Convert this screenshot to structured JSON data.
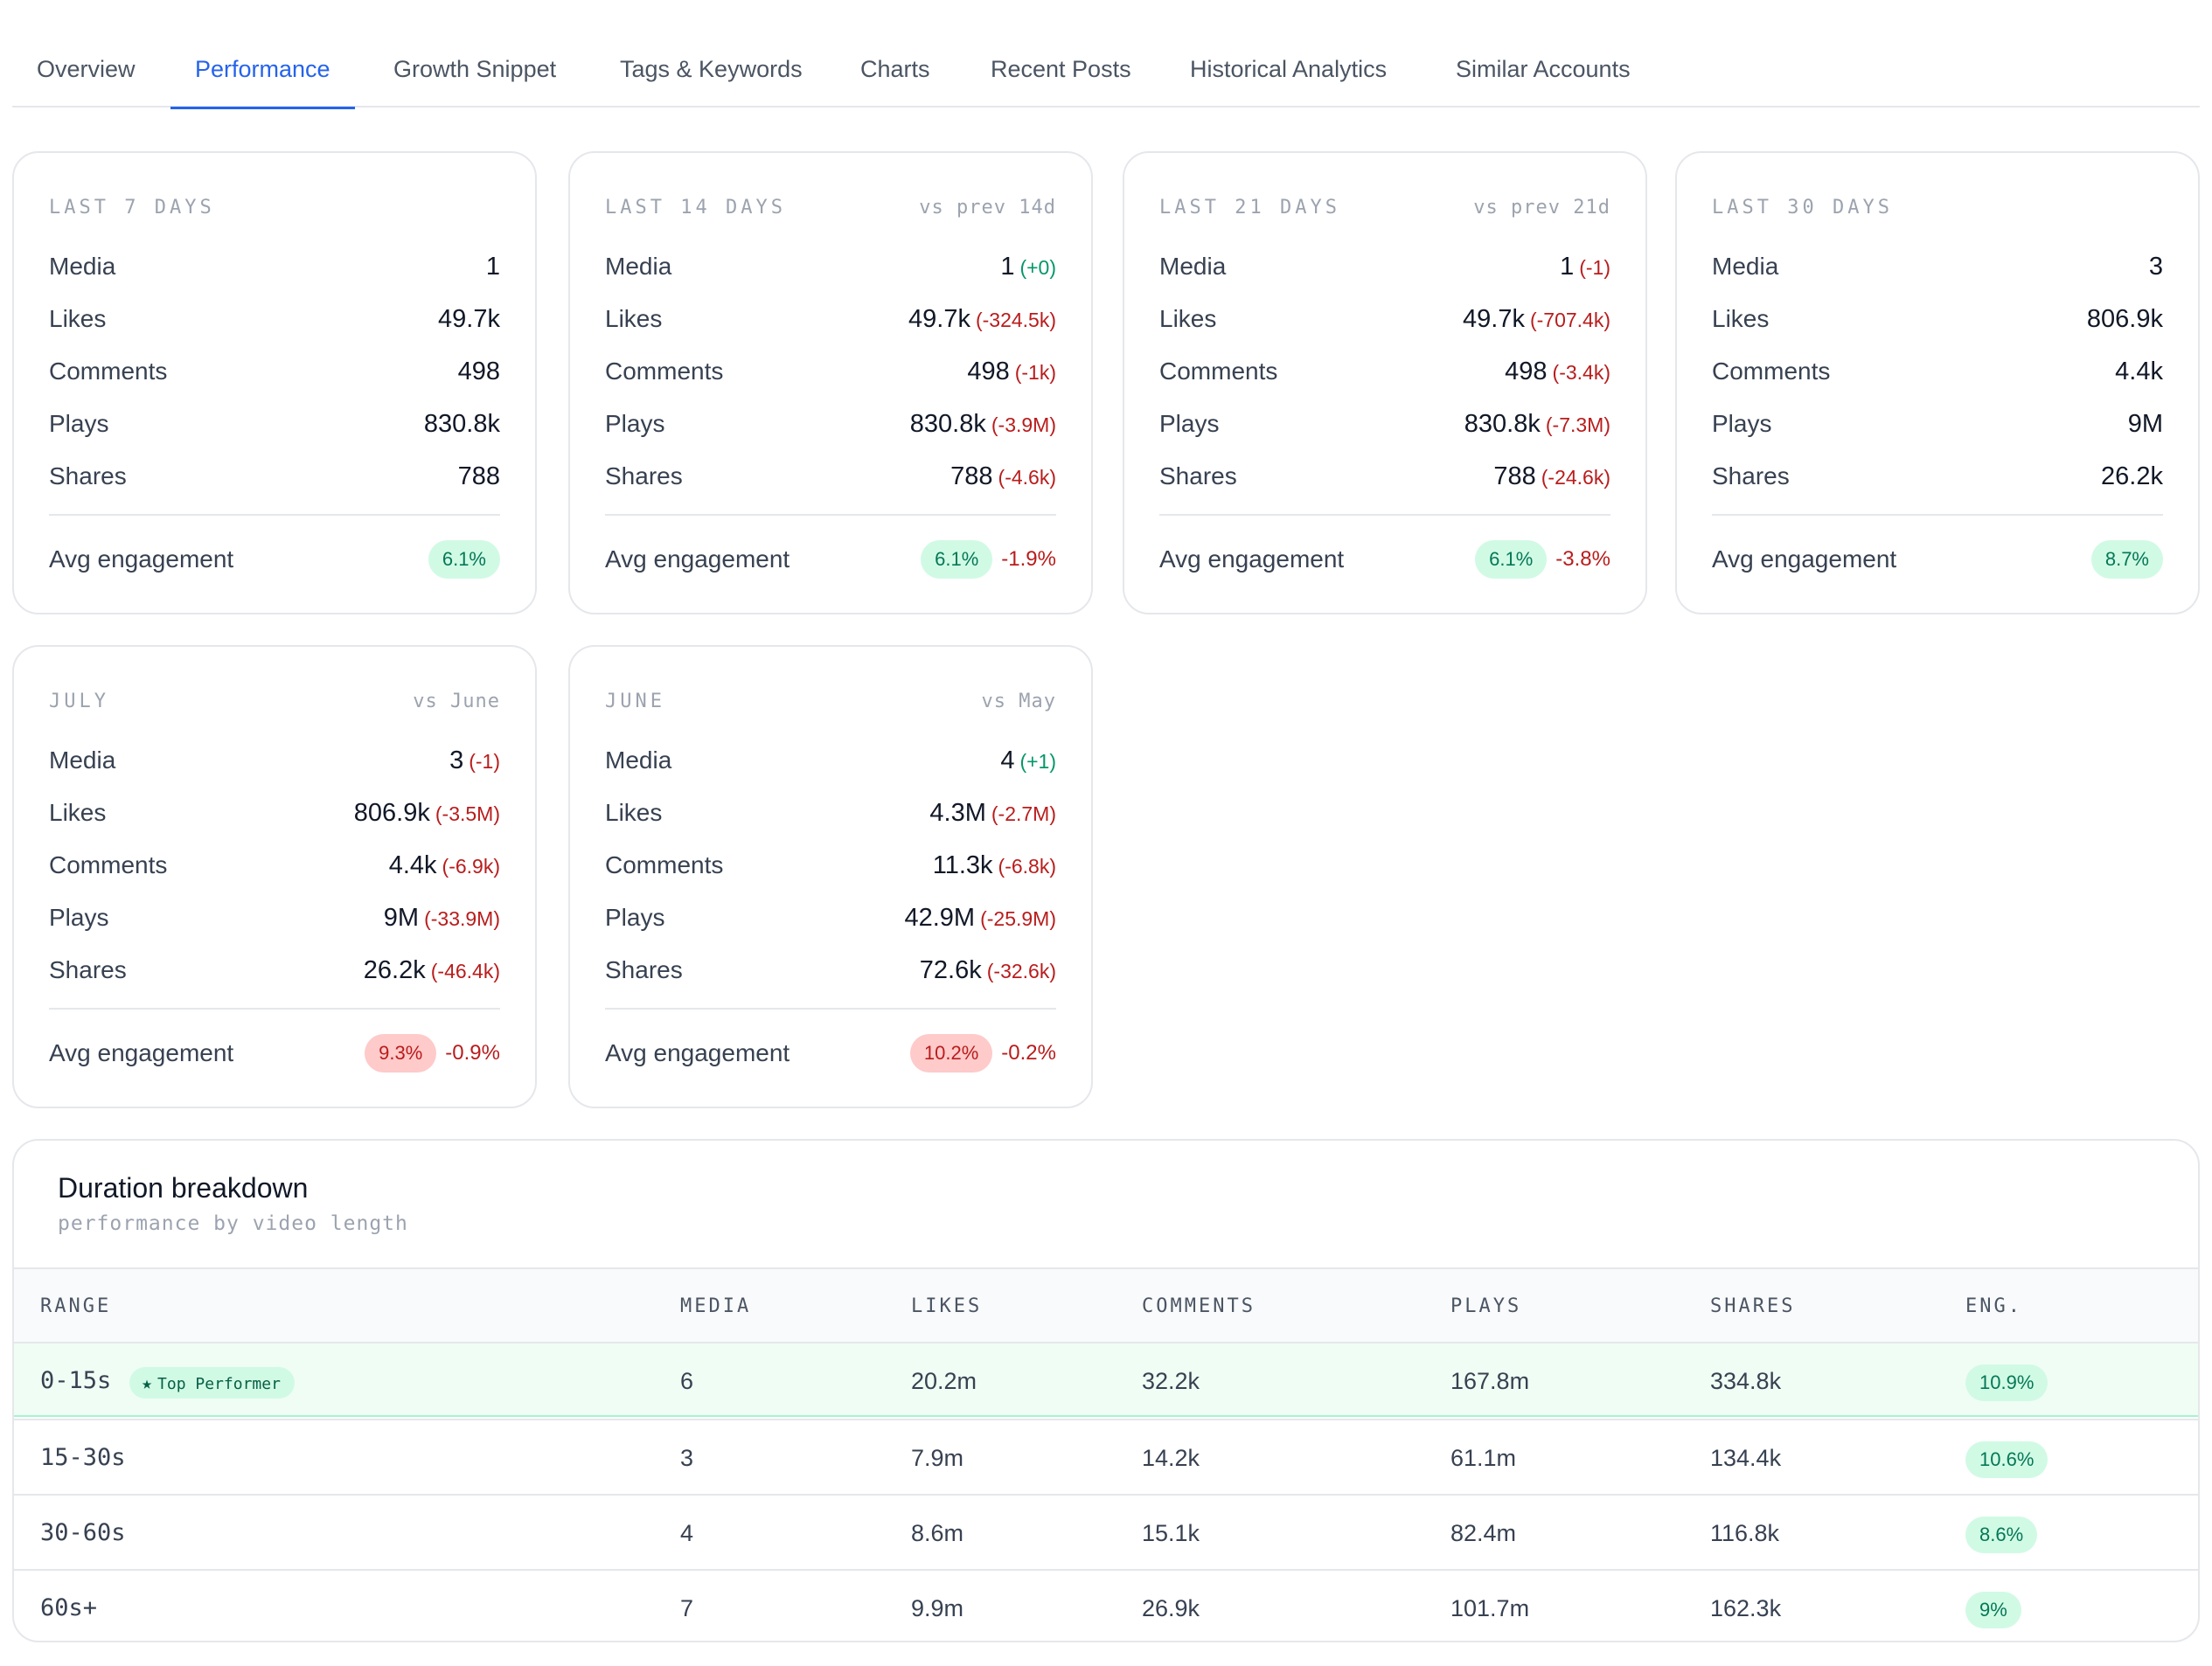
{
  "tabs": [
    {
      "label": "Overview"
    },
    {
      "label": "Performance"
    },
    {
      "label": "Growth Snippet"
    },
    {
      "label": "Tags & Keywords"
    },
    {
      "label": "Charts"
    },
    {
      "label": "Recent Posts"
    },
    {
      "label": "Historical Analytics"
    },
    {
      "label": "Similar Accounts"
    }
  ],
  "active_tab": "Performance",
  "metric_labels": {
    "media": "Media",
    "likes": "Likes",
    "comments": "Comments",
    "plays": "Plays",
    "shares": "Shares",
    "avg_engagement": "Avg engagement"
  },
  "cards": [
    {
      "title": "LAST 7 DAYS",
      "compare": "",
      "media": {
        "value": "1",
        "delta": ""
      },
      "likes": {
        "value": "49.7k",
        "delta": ""
      },
      "comments": {
        "value": "498",
        "delta": ""
      },
      "plays": {
        "value": "830.8k",
        "delta": ""
      },
      "shares": {
        "value": "788",
        "delta": ""
      },
      "engagement": {
        "value": "6.1%",
        "change": ""
      }
    },
    {
      "title": "LAST 14 DAYS",
      "compare": "vs prev 14d",
      "media": {
        "value": "1",
        "delta": "(+0)"
      },
      "likes": {
        "value": "49.7k",
        "delta": "(-324.5k)"
      },
      "comments": {
        "value": "498",
        "delta": "(-1k)"
      },
      "plays": {
        "value": "830.8k",
        "delta": "(-3.9M)"
      },
      "shares": {
        "value": "788",
        "delta": "(-4.6k)"
      },
      "engagement": {
        "value": "6.1%",
        "change": "-1.9%"
      }
    },
    {
      "title": "LAST 21 DAYS",
      "compare": "vs prev 21d",
      "media": {
        "value": "1",
        "delta": "(-1)"
      },
      "likes": {
        "value": "49.7k",
        "delta": "(-707.4k)"
      },
      "comments": {
        "value": "498",
        "delta": "(-3.4k)"
      },
      "plays": {
        "value": "830.8k",
        "delta": "(-7.3M)"
      },
      "shares": {
        "value": "788",
        "delta": "(-24.6k)"
      },
      "engagement": {
        "value": "6.1%",
        "change": "-3.8%"
      }
    },
    {
      "title": "LAST 30 DAYS",
      "compare": "",
      "media": {
        "value": "3",
        "delta": ""
      },
      "likes": {
        "value": "806.9k",
        "delta": ""
      },
      "comments": {
        "value": "4.4k",
        "delta": ""
      },
      "plays": {
        "value": "9M",
        "delta": ""
      },
      "shares": {
        "value": "26.2k",
        "delta": ""
      },
      "engagement": {
        "value": "8.7%",
        "change": ""
      }
    },
    {
      "title": "JULY",
      "compare": "vs June",
      "media": {
        "value": "3",
        "delta": "(-1)"
      },
      "likes": {
        "value": "806.9k",
        "delta": "(-3.5M)"
      },
      "comments": {
        "value": "4.4k",
        "delta": "(-6.9k)"
      },
      "plays": {
        "value": "9M",
        "delta": "(-33.9M)"
      },
      "shares": {
        "value": "26.2k",
        "delta": "(-46.4k)"
      },
      "engagement": {
        "value": "9.3%",
        "change": "-0.9%"
      }
    },
    {
      "title": "JUNE",
      "compare": "vs May",
      "media": {
        "value": "4",
        "delta": "(+1)"
      },
      "likes": {
        "value": "4.3M",
        "delta": "(-2.7M)"
      },
      "comments": {
        "value": "11.3k",
        "delta": "(-6.8k)"
      },
      "plays": {
        "value": "42.9M",
        "delta": "(-25.9M)"
      },
      "shares": {
        "value": "72.6k",
        "delta": "(-32.6k)"
      },
      "engagement": {
        "value": "10.2%",
        "change": "-0.2%"
      }
    }
  ],
  "duration": {
    "title": "Duration breakdown",
    "subtitle": "performance by video length",
    "columns": [
      "RANGE",
      "MEDIA",
      "LIKES",
      "COMMENTS",
      "PLAYS",
      "SHARES",
      "ENG."
    ],
    "top_badge": "Top Performer",
    "rows": [
      {
        "range": "0-15s",
        "media": "6",
        "likes": "20.2m",
        "comments": "32.2k",
        "plays": "167.8m",
        "shares": "334.8k",
        "eng": "10.9%"
      },
      {
        "range": "15-30s",
        "media": "3",
        "likes": "7.9m",
        "comments": "14.2k",
        "plays": "61.1m",
        "shares": "134.4k",
        "eng": "10.6%"
      },
      {
        "range": "30-60s",
        "media": "4",
        "likes": "8.6m",
        "comments": "15.1k",
        "plays": "82.4m",
        "shares": "116.8k",
        "eng": "8.6%"
      },
      {
        "range": "60s+",
        "media": "7",
        "likes": "9.9m",
        "comments": "26.9k",
        "plays": "101.7m",
        "shares": "162.3k",
        "eng": "9%"
      }
    ]
  },
  "colors": {
    "accent": "#2563eb",
    "positive": "#059669",
    "negative": "#b91c1c",
    "pill_green_bg": "#d1fae5",
    "pill_red_bg": "#fecaca"
  },
  "icons": {
    "top_performer": "star-icon"
  }
}
